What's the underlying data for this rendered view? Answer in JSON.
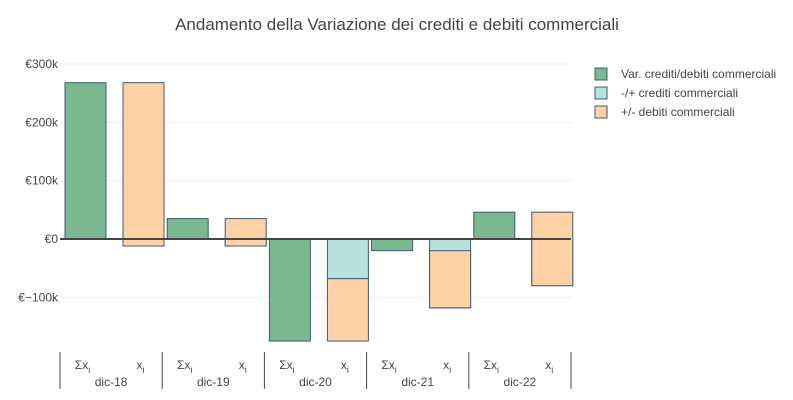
{
  "chart_data": {
    "type": "bar",
    "title": "Andamento della Variazione dei crediti e debiti commerciali",
    "xlabel": "",
    "ylabel": "",
    "y_ticks": [
      300000,
      200000,
      100000,
      0,
      -100000
    ],
    "y_tick_labels": [
      "€300k",
      "€200k",
      "€100k",
      "€0",
      "€−100k"
    ],
    "ylim": [
      -175000,
      300000
    ],
    "grid": true,
    "legend_position": "top-right",
    "categories": [
      "dic-18",
      "dic-19",
      "dic-20",
      "dic-21",
      "dic-22"
    ],
    "sub_categories": [
      "Σx",
      "x"
    ],
    "sub_category_subscript": "i",
    "series": [
      {
        "name": "Var. crediti/debiti commerciali",
        "color": "#7ab98f",
        "sub_category": "Σx",
        "values": [
          268000,
          35000,
          -175000,
          -20000,
          46000
        ]
      },
      {
        "name": "-/+ crediti commerciali",
        "color": "#b9e2dd",
        "sub_category": "x",
        "values": [
          -12000,
          -12000,
          -68000,
          -118000,
          -80000
        ]
      },
      {
        "name": "+/- debiti commerciali",
        "color": "#fed2a4",
        "sub_category": "x",
        "values": [
          280000,
          47000,
          -107000,
          98000,
          126000
        ]
      }
    ]
  }
}
